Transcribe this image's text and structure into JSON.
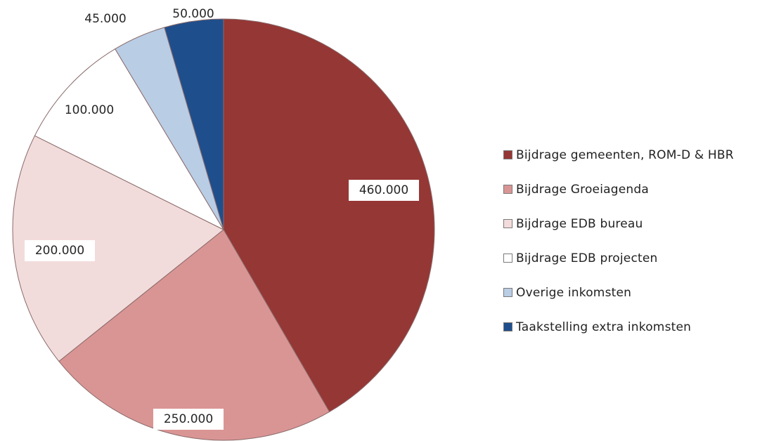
{
  "chart_data": {
    "type": "pie",
    "title": "",
    "slices": [
      {
        "name": "Bijdrage gemeenten, ROM-D & HBR",
        "value": 460000,
        "label": "460.000",
        "color": "#953735"
      },
      {
        "name": "Bijdrage Groeiagenda",
        "value": 250000,
        "label": "250.000",
        "color": "#d99594"
      },
      {
        "name": "Bijdrage EDB bureau",
        "value": 200000,
        "label": "200.000",
        "color": "#f2dcdb"
      },
      {
        "name": "Bijdrage EDB projecten",
        "value": 100000,
        "label": "100.000",
        "color": "#ffffff"
      },
      {
        "name": "Overige inkomsten",
        "value": 45000,
        "label": "45.000",
        "color": "#b9cde5"
      },
      {
        "name": "Taakstelling extra inkomsten",
        "value": 50000,
        "label": "50.000",
        "color": "#1f4e8c"
      }
    ],
    "start_angle": "12 o'clock",
    "direction": "clockwise",
    "legend_position": "right"
  }
}
